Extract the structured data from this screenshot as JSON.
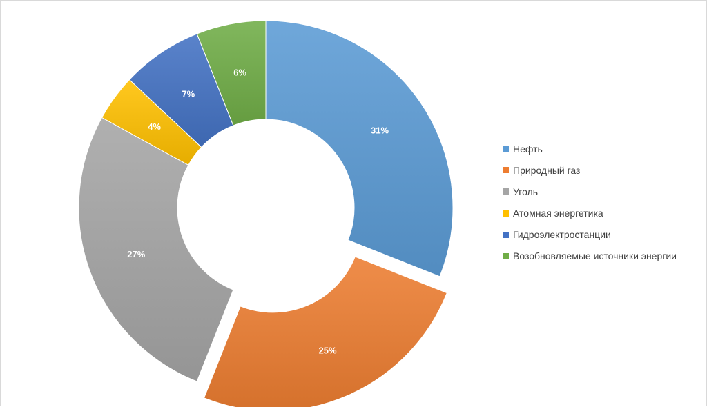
{
  "chart_data": {
    "type": "donut",
    "categories": [
      "Нефть",
      "Природный газ",
      "Уголь",
      "Атомная энергетика",
      "Гидроэлектростанции",
      "Возобновляемые источники энергии"
    ],
    "values": [
      31,
      25,
      27,
      4,
      7,
      6
    ],
    "labels": [
      "31%",
      "25%",
      "27%",
      "4%",
      "7%",
      "6%"
    ],
    "colors": [
      "#5B9BD5",
      "#ED7D31",
      "#A5A5A5",
      "#FFC000",
      "#4472C4",
      "#70AD47"
    ],
    "exploded_category": "Природный газ",
    "legend_position": "right"
  }
}
